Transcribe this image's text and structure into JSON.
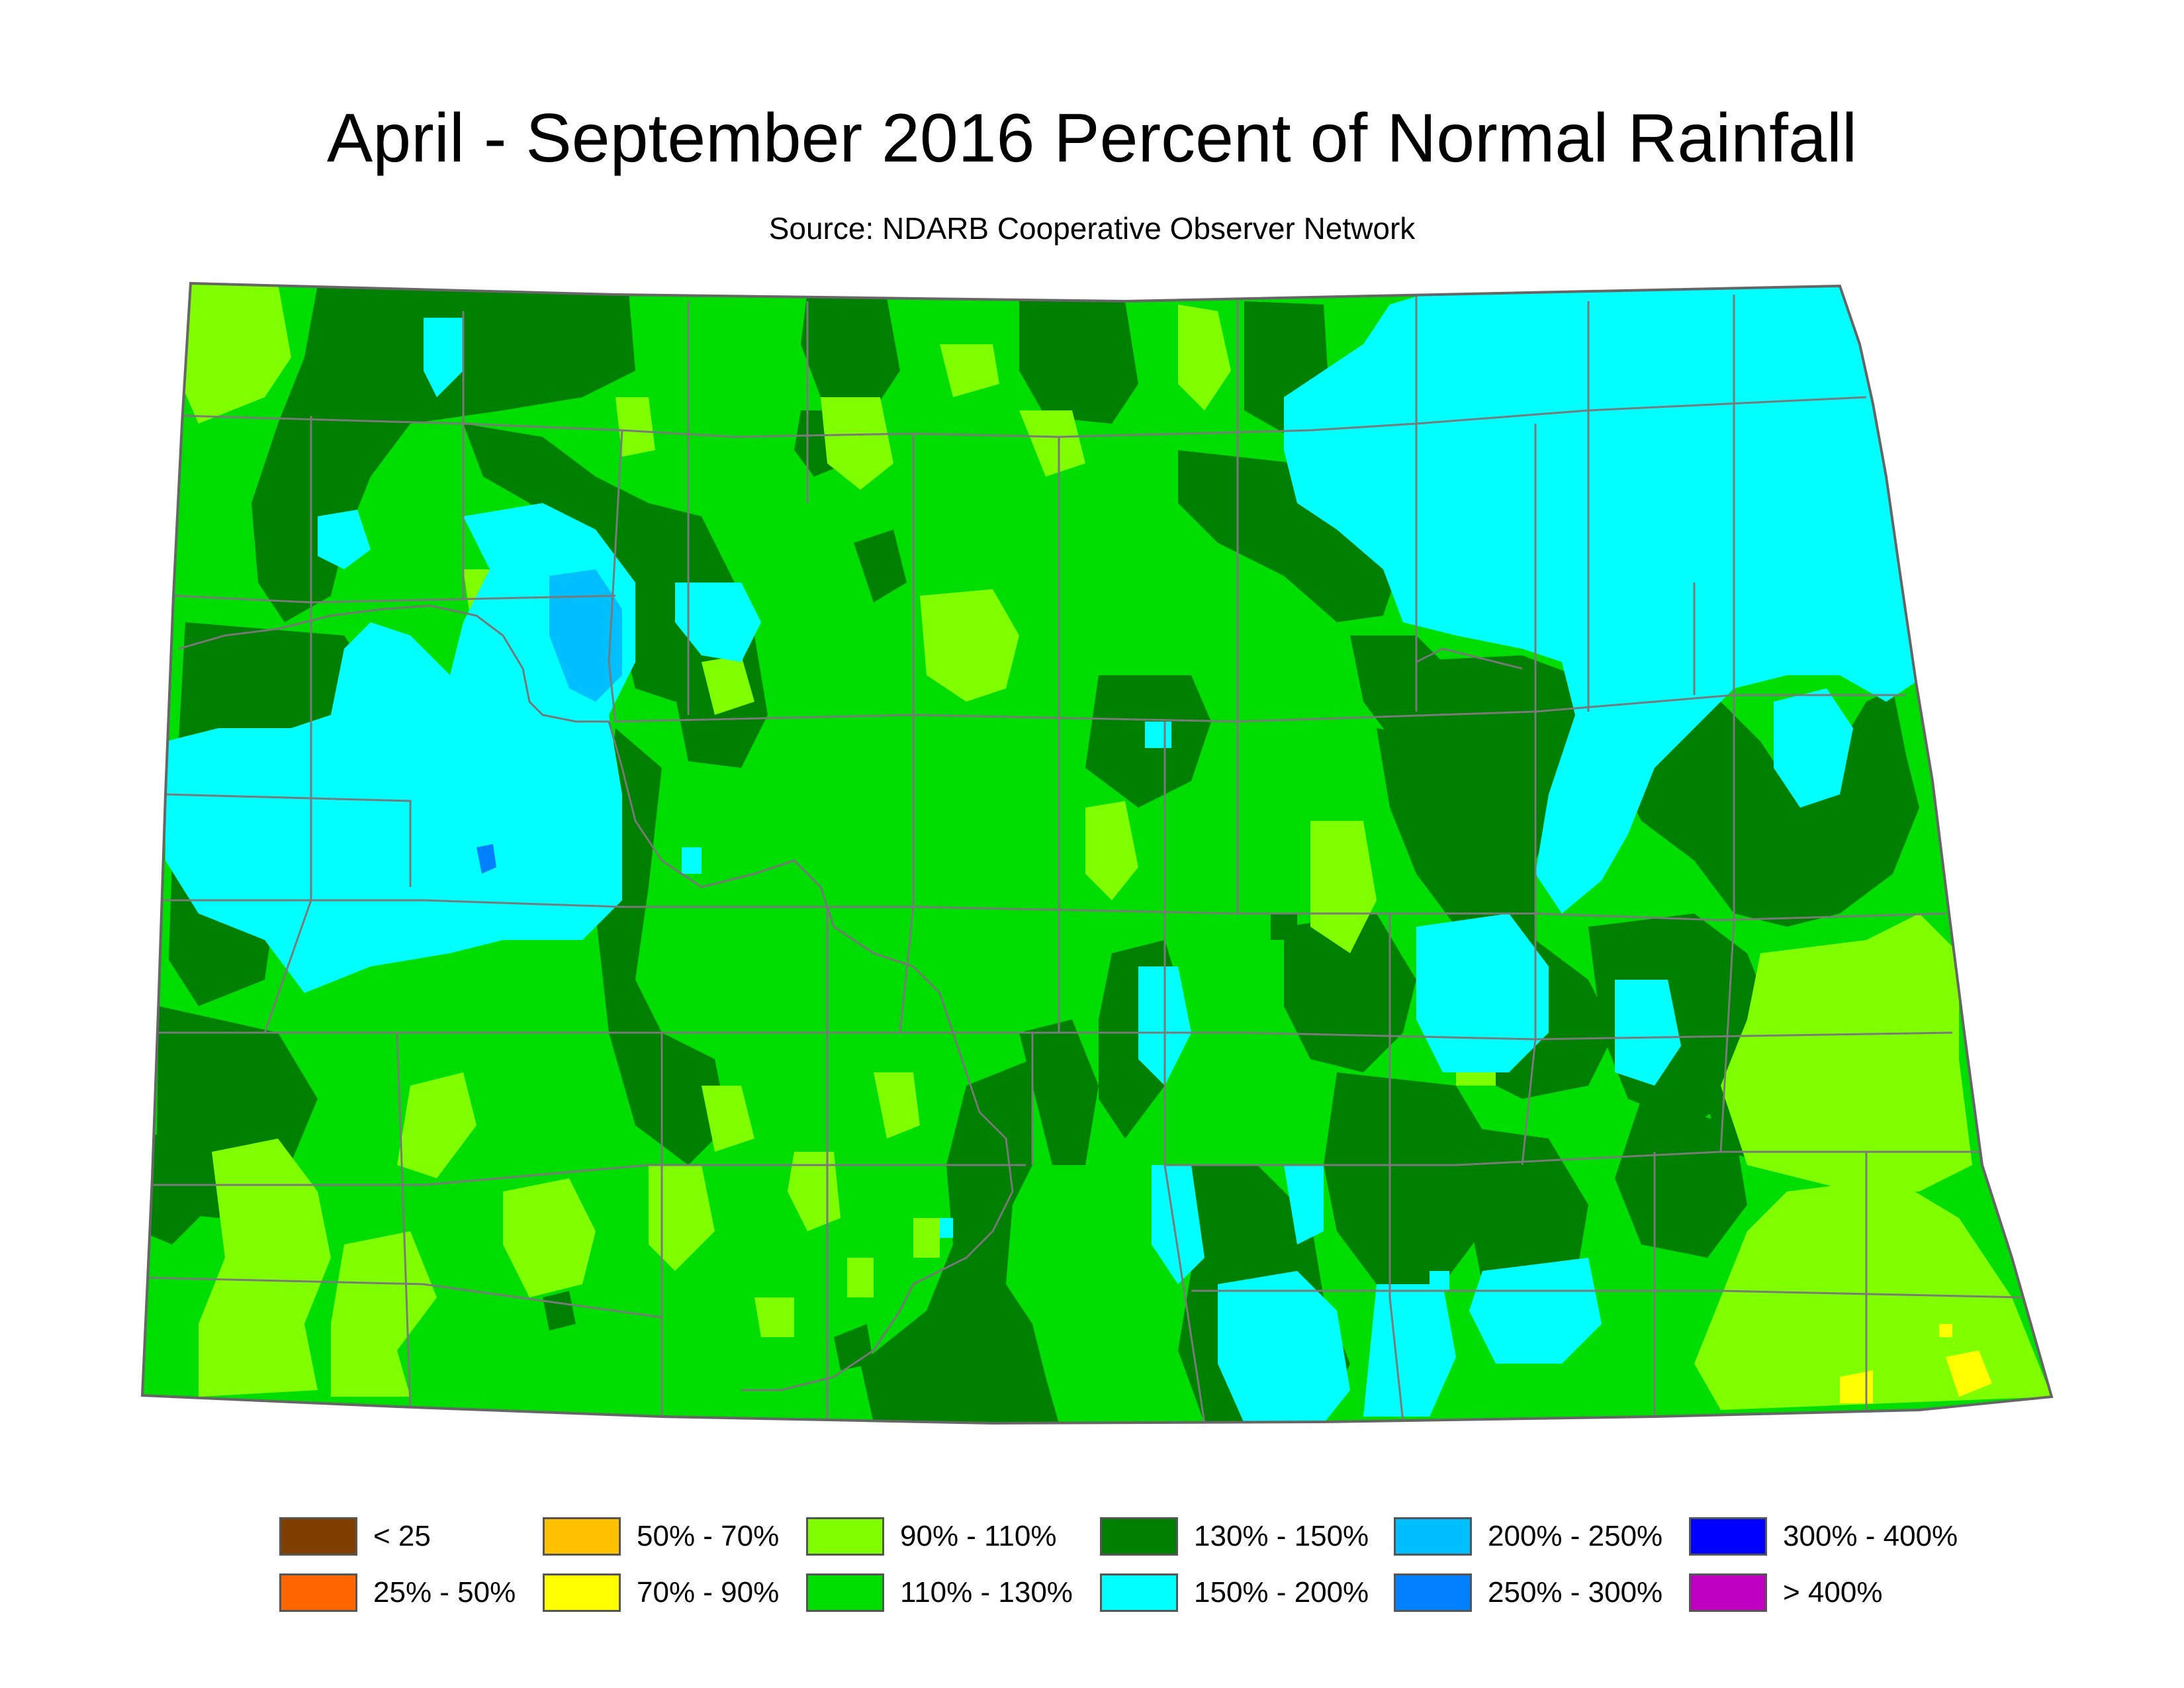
{
  "title": "April - September 2016 Percent of Normal Rainfall",
  "subtitle": "Source: NDARB Cooperative Observer Network",
  "colors": {
    "outline": "#666666",
    "county_lines": "#777777",
    "map_base": "#00dd00"
  },
  "legend": [
    {
      "label": "< 25",
      "color": "#7f3f00"
    },
    {
      "label": "25% - 50%",
      "color": "#ff6600"
    },
    {
      "label": "50% - 70%",
      "color": "#ffc000"
    },
    {
      "label": "70% - 90%",
      "color": "#ffff00"
    },
    {
      "label": "90% - 110%",
      "color": "#80ff00"
    },
    {
      "label": "110% - 130%",
      "color": "#00dd00"
    },
    {
      "label": "130% - 150%",
      "color": "#008000"
    },
    {
      "label": "150% - 200%",
      "color": "#00ffff"
    },
    {
      "label": "200% - 250%",
      "color": "#00bfff"
    },
    {
      "label": "250% - 300%",
      "color": "#0080ff"
    },
    {
      "label": "300% - 400%",
      "color": "#0000ff"
    },
    {
      "label": "> 400%",
      "color": "#c000c0"
    }
  ]
}
